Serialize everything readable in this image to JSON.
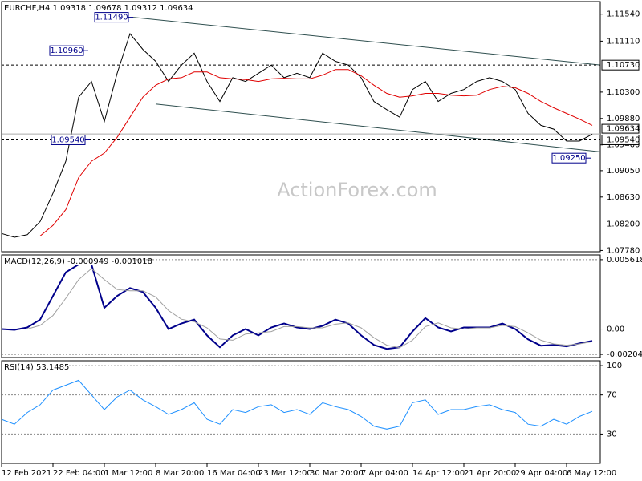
{
  "chart_data": [
    {
      "type": "line",
      "title": "EURCHF,H4  1.09318 1.09678 1.09312 1.09634",
      "watermark": "ActionForex.com",
      "x": [
        0,
        8,
        16,
        24,
        32,
        40,
        48,
        56,
        64,
        72,
        80,
        88,
        96,
        104,
        112,
        120,
        128,
        136,
        144,
        152,
        160,
        168,
        176,
        184,
        192,
        200,
        208,
        216,
        224,
        232,
        240,
        248,
        256,
        264,
        272,
        280,
        288,
        296,
        304,
        312,
        320,
        328,
        336,
        344,
        352,
        360,
        368
      ],
      "xlim": [
        0,
        373
      ],
      "series": [
        {
          "name": "EURCHF",
          "color": "#000000",
          "values": [
            1.0805,
            1.0799,
            1.0803,
            1.0824,
            1.0869,
            1.092,
            1.1022,
            1.1047,
            1.0983,
            1.106,
            1.1123,
            1.1098,
            1.1079,
            1.1047,
            1.1073,
            1.1092,
            1.1047,
            1.1015,
            1.1053,
            1.1047,
            1.106,
            1.1073,
            1.1053,
            1.106,
            1.1053,
            1.1092,
            1.1079,
            1.1073,
            1.1053,
            1.1015,
            1.1002,
            1.099,
            1.1034,
            1.1047,
            1.1015,
            1.1028,
            1.1034,
            1.1047,
            1.1053,
            1.1047,
            1.1034,
            1.0996,
            1.0977,
            1.0971,
            1.0952,
            1.0952,
            1.0963
          ]
        },
        {
          "name": "MA",
          "color": "#e00000",
          "values": [
            null,
            null,
            null,
            1.0801,
            1.0818,
            1.0843,
            1.0894,
            1.092,
            1.0933,
            1.0958,
            1.099,
            1.1022,
            1.1041,
            1.1051,
            1.1053,
            1.1062,
            1.1062,
            1.1053,
            1.1051,
            1.105,
            1.1047,
            1.1051,
            1.1052,
            1.1051,
            1.1051,
            1.1057,
            1.1066,
            1.1066,
            1.1056,
            1.1041,
            1.1028,
            1.1022,
            1.1024,
            1.1028,
            1.1028,
            1.1025,
            1.1024,
            1.1025,
            1.1034,
            1.1039,
            1.1037,
            1.1028,
            1.1015,
            1.1005,
            1.0996,
            1.0987,
            1.0977
          ]
        }
      ],
      "ylim": [
        1.0776,
        1.1174
      ],
      "yticks": [
        {
          "value": 1.1154,
          "label": "1.11540"
        },
        {
          "value": 1.1111,
          "label": "1.11110"
        },
        {
          "value": 1.103,
          "label": "1.10300"
        },
        {
          "value": 1.0988,
          "label": "1.09880"
        },
        {
          "value": 1.0946,
          "label": "1.09460"
        },
        {
          "value": 1.0905,
          "label": "1.09050"
        },
        {
          "value": 1.0863,
          "label": "1.08630"
        },
        {
          "value": 1.082,
          "label": "1.08200"
        },
        {
          "value": 1.0778,
          "label": "1.07780"
        }
      ],
      "levels": [
        {
          "value": 1.1073,
          "label": "1.10730"
        },
        {
          "value": 1.0954,
          "label": "1.09540"
        }
      ],
      "last_price": 1.09634,
      "annotations": [
        {
          "text": "1.11490",
          "x": 82,
          "y": 1.1149
        },
        {
          "text": "1.10960",
          "x": 54,
          "y": 1.1096
        },
        {
          "text": "1.09540",
          "x": 55,
          "y": 1.0954
        },
        {
          "text": "1.09250",
          "x": 367,
          "y": 1.0925
        }
      ],
      "trendlines": [
        {
          "x": [
            82,
            373
          ],
          "y": [
            1.1149,
            1.1073
          ]
        },
        {
          "x": [
            96,
            373
          ],
          "y": [
            1.1011,
            1.0935
          ]
        }
      ]
    },
    {
      "type": "line",
      "title": "MACD(12,26,9) -0.000949 -0.001018",
      "x": [
        0,
        8,
        16,
        24,
        32,
        40,
        48,
        56,
        64,
        72,
        80,
        88,
        96,
        104,
        112,
        120,
        128,
        136,
        144,
        152,
        160,
        168,
        176,
        184,
        192,
        200,
        208,
        216,
        224,
        232,
        240,
        248,
        256,
        264,
        272,
        280,
        288,
        296,
        304,
        312,
        320,
        328,
        336,
        344,
        352,
        360,
        368
      ],
      "xlim": [
        0,
        373
      ],
      "series": [
        {
          "name": "MACD",
          "color": "#00008b",
          "values": [
            0,
            -6e-05,
            0.00013,
            0.00077,
            0.00268,
            0.00459,
            0.00523,
            0.00523,
            0.00172,
            0.00268,
            0.00332,
            0.003,
            0.00172,
            0,
            0.00045,
            0.00077,
            -0.00051,
            -0.00147,
            -0.00051,
            0,
            -0.00051,
            0.00013,
            0.00045,
            0.00013,
            0,
            0.00026,
            0.00077,
            0.00045,
            -0.00051,
            -0.00128,
            -0.0016,
            -0.00147,
            -0.00019,
            0.00089,
            0.00013,
            -0.00019,
            0.00013,
            0.00013,
            0.00013,
            0.00045,
            0,
            -0.00083,
            -0.00134,
            -0.00128,
            -0.0014,
            -0.00115,
            -0.000949
          ]
        },
        {
          "name": "Signal",
          "color": "#a0a0a0",
          "values": [
            0,
            0,
            0,
            0.0003,
            0.0011,
            0.0025,
            0.004,
            0.0049,
            0.004,
            0.0032,
            0.0031,
            0.0031,
            0.0026,
            0.0015,
            0.0008,
            0.0006,
            0.0001,
            -0.0008,
            -0.0009,
            -0.0004,
            -0.0003,
            -0.0002,
            0.0002,
            0.0002,
            0.0001,
            0.0001,
            0.0004,
            0.0005,
            0.0001,
            -0.0007,
            -0.0013,
            -0.0015,
            -0.0009,
            0.0002,
            0.0005,
            0.0001,
            0,
            0.0001,
            0.0001,
            0.0003,
            0.0002,
            -0.0003,
            -0.0009,
            -0.0012,
            -0.0013,
            -0.0012,
            -0.001018
          ]
        }
      ],
      "ylim": [
        -0.0023,
        0.006
      ],
      "yticks": [
        0.005618,
        {
          "value": 0,
          "label": "0.00"
        },
        -0.002046
      ],
      "grid": true
    },
    {
      "type": "line",
      "title": "RSI(14) 53.1485",
      "x": [
        0,
        8,
        16,
        24,
        32,
        40,
        48,
        56,
        64,
        72,
        80,
        88,
        96,
        104,
        112,
        120,
        128,
        136,
        144,
        152,
        160,
        168,
        176,
        184,
        192,
        200,
        208,
        216,
        224,
        232,
        240,
        248,
        256,
        264,
        272,
        280,
        288,
        296,
        304,
        312,
        320,
        328,
        336,
        344,
        352,
        360,
        368
      ],
      "xlim": [
        0,
        373
      ],
      "series": [
        {
          "name": "RSI",
          "color": "#1e90ff",
          "values": [
            45,
            40,
            52,
            60,
            75,
            80,
            85,
            70,
            55,
            68,
            75,
            65,
            58,
            50,
            55,
            62,
            45,
            40,
            55,
            52,
            58,
            60,
            52,
            55,
            50,
            62,
            58,
            55,
            48,
            38,
            35,
            38,
            62,
            65,
            50,
            55,
            55,
            58,
            60,
            55,
            52,
            40,
            38,
            45,
            40,
            48,
            53.1485
          ]
        }
      ],
      "ylim": [
        0,
        105
      ],
      "yticks": [
        100,
        70,
        30
      ],
      "grid": true,
      "xticks": [
        {
          "value": 0,
          "label": "12 Feb 2021"
        },
        {
          "value": 32,
          "label": "22 Feb 04:00"
        },
        {
          "value": 64,
          "label": "1 Mar 12:00"
        },
        {
          "value": 96,
          "label": "8 Mar 20:00"
        },
        {
          "value": 128,
          "label": "16 Mar 04:00"
        },
        {
          "value": 160,
          "label": "23 Mar 12:00"
        },
        {
          "value": 192,
          "label": "30 Mar 20:00"
        },
        {
          "value": 224,
          "label": "7 Apr 04:00"
        },
        {
          "value": 256,
          "label": "14 Apr 12:00"
        },
        {
          "value": 288,
          "label": "21 Apr 20:00"
        },
        {
          "value": 320,
          "label": "29 Apr 04:00"
        },
        {
          "value": 352,
          "label": "6 May 12:00"
        }
      ]
    }
  ]
}
